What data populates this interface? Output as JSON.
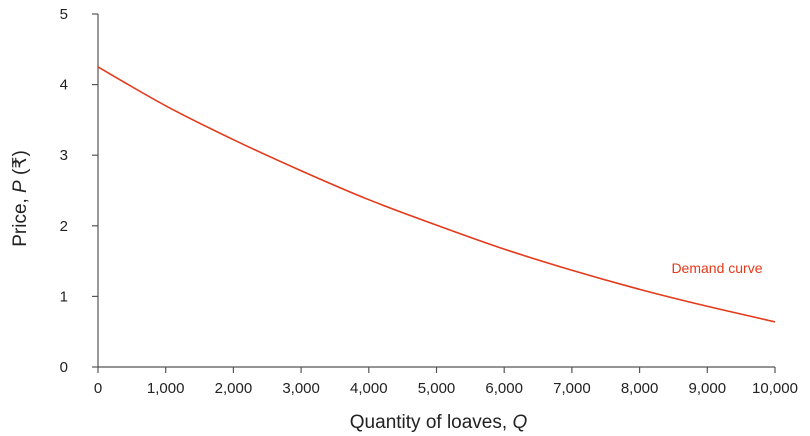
{
  "colors": {
    "axis": "#555555",
    "text": "#222222",
    "series": "#e23a1b"
  },
  "chart_data": {
    "type": "line",
    "title": "",
    "xlabel": {
      "prefix": "Quantity of loaves, ",
      "variable": "Q",
      "suffix": ""
    },
    "ylabel": {
      "prefix": "Price, ",
      "variable": "P",
      "suffix": " (₹)"
    },
    "xlim": [
      0,
      10000
    ],
    "ylim": [
      0,
      5
    ],
    "x_ticks": [
      0,
      1000,
      2000,
      3000,
      4000,
      5000,
      6000,
      7000,
      8000,
      9000,
      10000
    ],
    "x_tick_labels": [
      "0",
      "1,000",
      "2,000",
      "3,000",
      "4,000",
      "5,000",
      "6,000",
      "7,000",
      "8,000",
      "9,000",
      "10,000"
    ],
    "y_ticks": [
      0,
      1,
      2,
      3,
      4,
      5
    ],
    "y_tick_labels": [
      "0",
      "1",
      "2",
      "3",
      "4",
      "5"
    ],
    "grid": false,
    "legend": "none",
    "series": [
      {
        "name": "Demand curve",
        "x": [
          0,
          1000,
          2000,
          3000,
          4000,
          5000,
          6000,
          7000,
          8000,
          9000,
          10000
        ],
        "y": [
          4.25,
          3.7,
          3.22,
          2.78,
          2.37,
          2.01,
          1.67,
          1.37,
          1.1,
          0.86,
          0.64
        ]
      }
    ],
    "annotations": [
      {
        "text": "Demand curve",
        "x": 8500,
        "y": 1.4
      }
    ]
  }
}
